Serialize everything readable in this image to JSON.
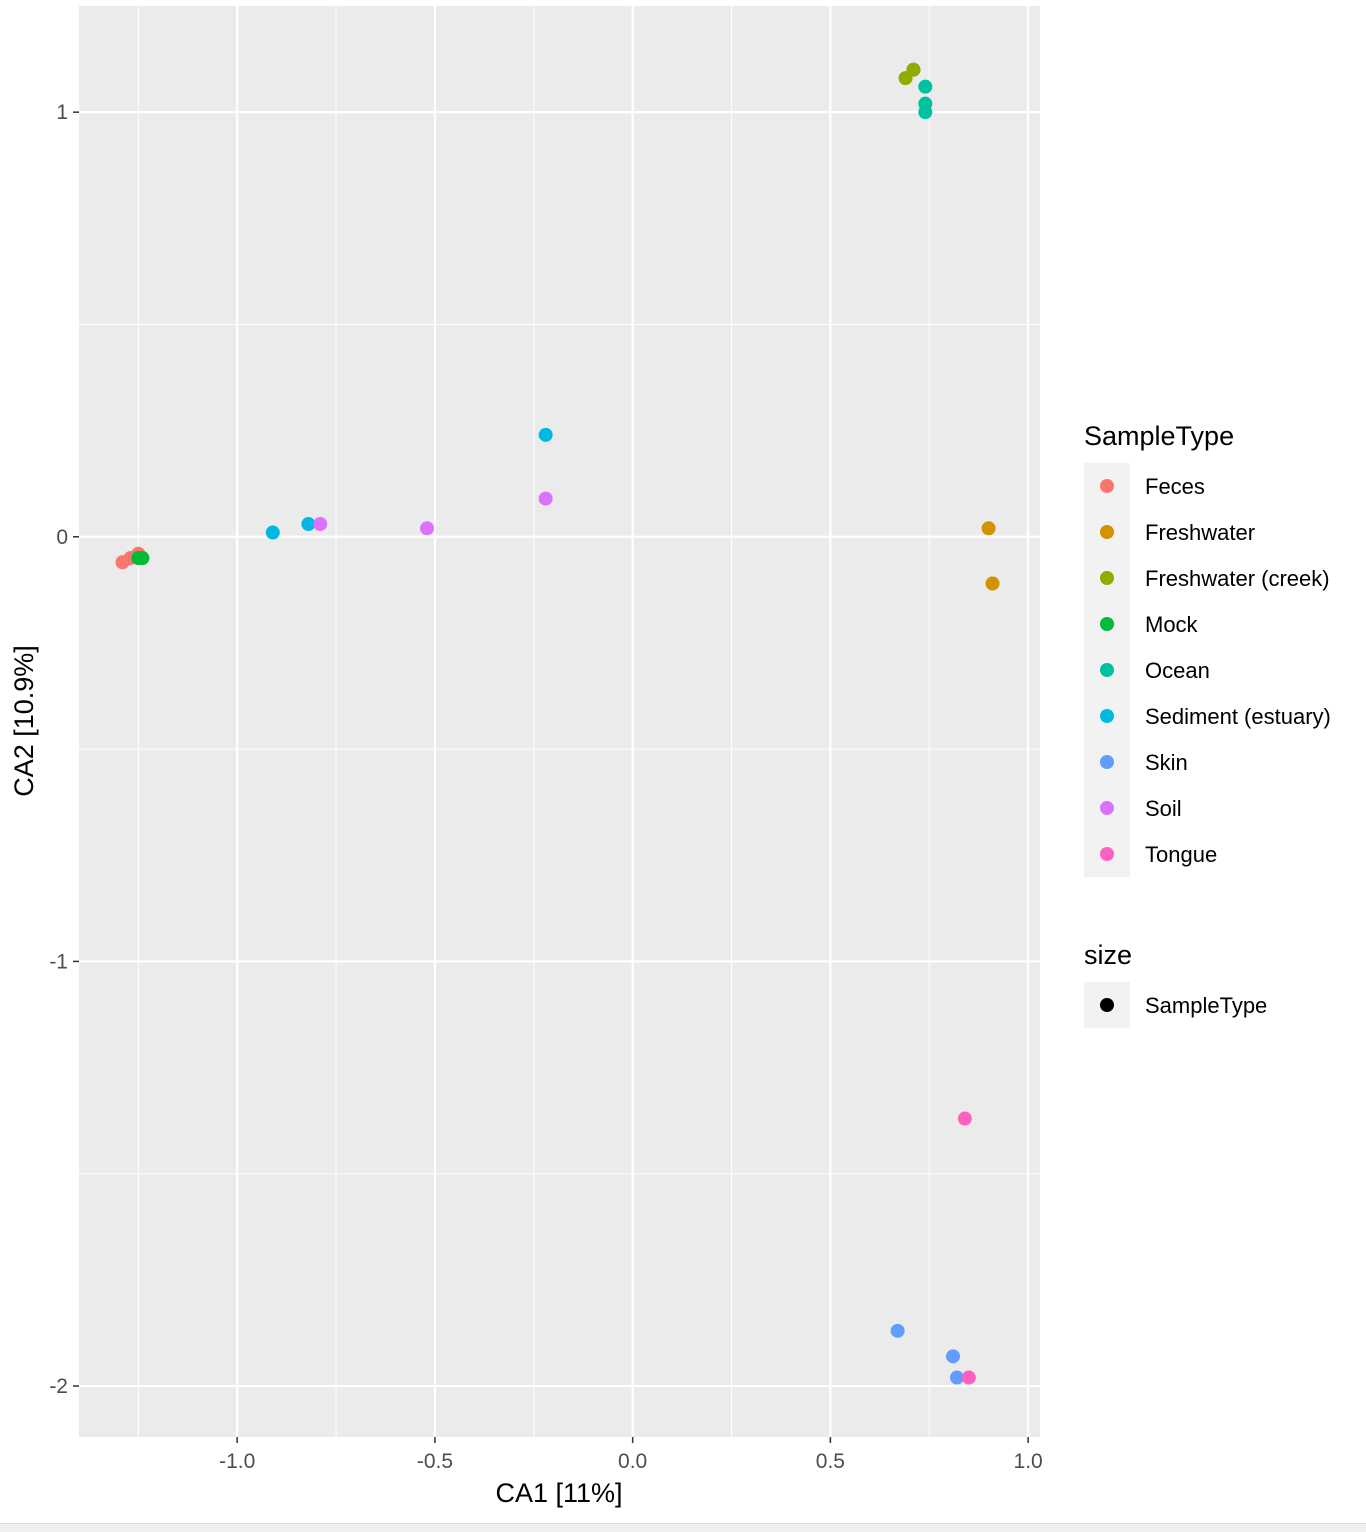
{
  "chart_data": {
    "type": "scatter",
    "xlabel": "CA1   [11%]",
    "ylabel": "CA2   [10.9%]",
    "xlim": [
      -1.4,
      1.03
    ],
    "ylim": [
      -2.12,
      1.25
    ],
    "x_ticks": [
      -1.0,
      -0.5,
      0.0,
      0.5,
      1.0
    ],
    "x_tick_labels": [
      "-1.0",
      "-0.5",
      "0.0",
      "0.5",
      "1.0"
    ],
    "y_ticks": [
      1,
      0,
      -1,
      -2
    ],
    "y_tick_labels": [
      "1",
      "0",
      "-1",
      "-2"
    ],
    "grid": true,
    "legend_placement": "right",
    "legends": [
      {
        "title": "SampleType",
        "entries": [
          {
            "label": "Feces",
            "color": "#F8766D"
          },
          {
            "label": "Freshwater",
            "color": "#D39200"
          },
          {
            "label": "Freshwater (creek)",
            "color": "#93AA00"
          },
          {
            "label": "Mock",
            "color": "#00BA38"
          },
          {
            "label": "Ocean",
            "color": "#00C19F"
          },
          {
            "label": "Sediment (estuary)",
            "color": "#00B9E3"
          },
          {
            "label": "Skin",
            "color": "#619CFF"
          },
          {
            "label": "Soil",
            "color": "#DB72FB"
          },
          {
            "label": "Tongue",
            "color": "#FF61C3"
          }
        ]
      },
      {
        "title": "size",
        "entries": [
          {
            "label": "SampleType",
            "color": "#000000"
          }
        ]
      }
    ],
    "series": [
      {
        "name": "Feces",
        "color": "#F8766D",
        "points": [
          [
            -1.29,
            -0.06
          ],
          [
            -1.27,
            -0.05
          ],
          [
            -1.25,
            -0.04
          ]
        ]
      },
      {
        "name": "Freshwater",
        "color": "#D39200",
        "points": [
          [
            0.9,
            0.02
          ],
          [
            0.91,
            -0.11
          ]
        ]
      },
      {
        "name": "Freshwater (creek)",
        "color": "#93AA00",
        "points": [
          [
            0.69,
            1.08
          ],
          [
            0.71,
            1.1
          ],
          [
            0.71,
            1.1
          ]
        ]
      },
      {
        "name": "Mock",
        "color": "#00BA38",
        "points": [
          [
            -1.25,
            -0.05
          ],
          [
            -1.24,
            -0.05
          ],
          [
            -1.24,
            -0.05
          ]
        ]
      },
      {
        "name": "Ocean",
        "color": "#00C19F",
        "points": [
          [
            0.74,
            1.06
          ],
          [
            0.74,
            1.02
          ],
          [
            0.74,
            1.0
          ]
        ]
      },
      {
        "name": "Sediment (estuary)",
        "color": "#00B9E3",
        "points": [
          [
            -0.91,
            0.01
          ],
          [
            -0.82,
            0.03
          ],
          [
            -0.22,
            0.24
          ]
        ]
      },
      {
        "name": "Skin",
        "color": "#619CFF",
        "points": [
          [
            0.67,
            -1.87
          ],
          [
            0.81,
            -1.93
          ],
          [
            0.82,
            -1.98
          ]
        ]
      },
      {
        "name": "Soil",
        "color": "#DB72FB",
        "points": [
          [
            -0.79,
            0.03
          ],
          [
            -0.52,
            0.02
          ],
          [
            -0.22,
            0.09
          ]
        ]
      },
      {
        "name": "Tongue",
        "color": "#FF61C3",
        "points": [
          [
            0.84,
            -1.37
          ],
          [
            0.85,
            -1.98
          ]
        ]
      }
    ]
  }
}
